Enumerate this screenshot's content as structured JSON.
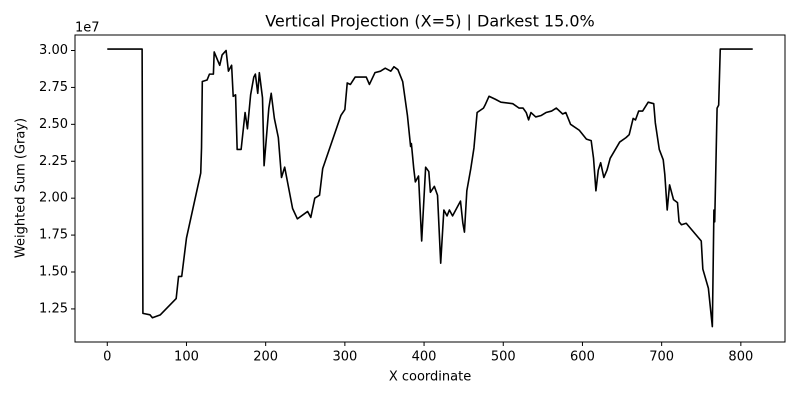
{
  "chart_data": {
    "type": "line",
    "title": "Vertical Projection (X=5) | Darkest 15.0%",
    "x_label": "X coordinate",
    "y_label": "Weighted Sum (Gray)",
    "y_offset_label": "1e7",
    "color": "#000000",
    "x": [
      0,
      44,
      45,
      54,
      57,
      67,
      87,
      90,
      94,
      100,
      118,
      119,
      120,
      126,
      129,
      134,
      135,
      142,
      145,
      150,
      153,
      157,
      159,
      162,
      164,
      169,
      174,
      177,
      181,
      185,
      187,
      190,
      192,
      196,
      198,
      204,
      207,
      211,
      216,
      220,
      224,
      234,
      240,
      253,
      257,
      262,
      268,
      272,
      295,
      300,
      303,
      307,
      313,
      327,
      331,
      338,
      345,
      351,
      358,
      362,
      367,
      373,
      379,
      383,
      384,
      387,
      389,
      393,
      397,
      402,
      406,
      408,
      413,
      417,
      421,
      425,
      429,
      432,
      436,
      442,
      446,
      449,
      451,
      454,
      459,
      463,
      467,
      475,
      477,
      482,
      490,
      497,
      512,
      520,
      525,
      529,
      532,
      535,
      541,
      548,
      554,
      561,
      567,
      575,
      579,
      585,
      596,
      605,
      611,
      614,
      617,
      620,
      623,
      627,
      631,
      635,
      647,
      655,
      659,
      664,
      667,
      671,
      676,
      683,
      690,
      692,
      697,
      702,
      704,
      707,
      710,
      715,
      720,
      722,
      725,
      731,
      750,
      752,
      759,
      764,
      766,
      767,
      770,
      772,
      774,
      815
    ],
    "values": [
      3.01,
      3.01,
      1.22,
      1.21,
      1.19,
      1.21,
      1.32,
      1.47,
      1.47,
      1.73,
      2.17,
      2.34,
      2.79,
      2.8,
      2.84,
      2.84,
      2.99,
      2.9,
      2.97,
      3.0,
      2.86,
      2.9,
      2.69,
      2.7,
      2.33,
      2.33,
      2.58,
      2.47,
      2.7,
      2.82,
      2.84,
      2.71,
      2.85,
      2.68,
      2.22,
      2.61,
      2.71,
      2.54,
      2.41,
      2.14,
      2.21,
      1.93,
      1.86,
      1.91,
      1.87,
      2.0,
      2.02,
      2.2,
      2.56,
      2.6,
      2.78,
      2.77,
      2.82,
      2.82,
      2.77,
      2.85,
      2.86,
      2.88,
      2.86,
      2.89,
      2.87,
      2.79,
      2.56,
      2.35,
      2.37,
      2.2,
      2.11,
      2.15,
      1.71,
      2.21,
      2.18,
      2.04,
      2.08,
      2.02,
      1.56,
      1.92,
      1.88,
      1.92,
      1.88,
      1.94,
      1.98,
      1.83,
      1.77,
      2.05,
      2.2,
      2.34,
      2.58,
      2.61,
      2.63,
      2.69,
      2.67,
      2.65,
      2.64,
      2.61,
      2.61,
      2.58,
      2.53,
      2.58,
      2.55,
      2.56,
      2.58,
      2.59,
      2.61,
      2.57,
      2.58,
      2.5,
      2.46,
      2.4,
      2.39,
      2.27,
      2.05,
      2.19,
      2.24,
      2.14,
      2.19,
      2.27,
      2.38,
      2.41,
      2.43,
      2.54,
      2.53,
      2.59,
      2.59,
      2.65,
      2.64,
      2.51,
      2.33,
      2.26,
      2.16,
      1.92,
      2.09,
      1.99,
      1.97,
      1.84,
      1.82,
      1.83,
      1.71,
      1.52,
      1.39,
      1.13,
      1.92,
      1.84,
      2.61,
      2.63,
      3.01,
      3.01
    ],
    "xlim": [
      -40.75,
      855.75
    ],
    "xticks": [
      0,
      100,
      200,
      300,
      400,
      500,
      600,
      700,
      800
    ],
    "ylim": [
      1.026,
      3.105
    ],
    "yticks": [
      1.25,
      {
        "value": 1.5,
        "label": "1.50"
      },
      1.75,
      {
        "value": 2.0,
        "label": "2.00"
      },
      2.25,
      {
        "value": 2.5,
        "label": "2.50"
      },
      2.75,
      {
        "value": 3.0,
        "label": "3.00"
      }
    ],
    "grid": false
  }
}
